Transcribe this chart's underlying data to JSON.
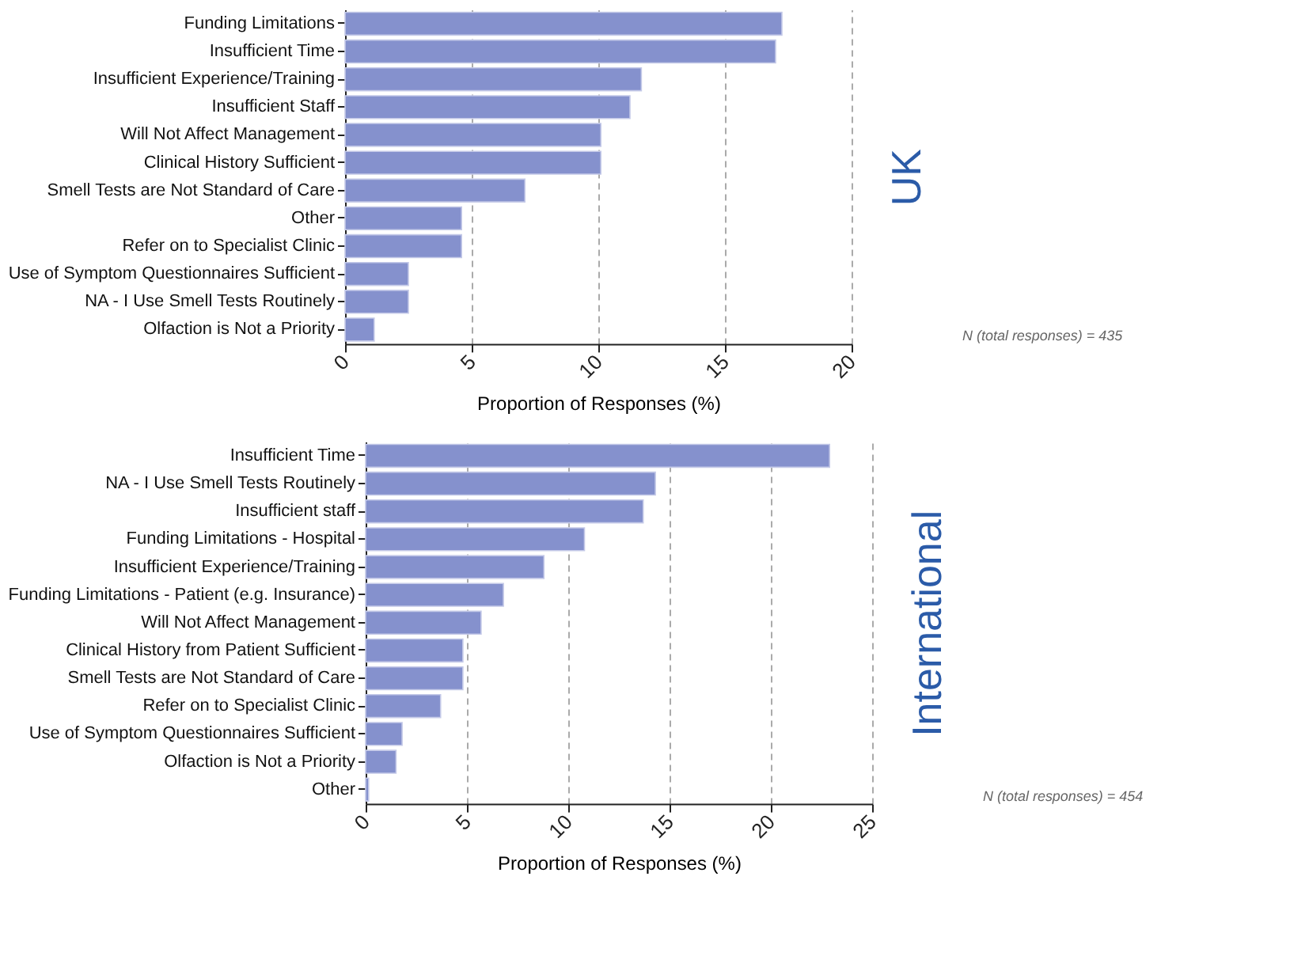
{
  "chart_data": [
    {
      "type": "bar",
      "orientation": "horizontal",
      "y2label": "UK",
      "xlabel": "Proportion of Responses (%)",
      "color": "#8591cd",
      "grid": "x",
      "categories": [
        "Funding Limitations",
        "Insufficient Time",
        "Insufficient Experience/Training",
        "Insufficient Staff",
        "Will Not Affect Management",
        "Clinical History Sufficient",
        "Smell Tests are Not Standard of Care",
        "Other",
        "Refer on to Specialist Clinic",
        "Use of Symptom Questionnaires Sufficient",
        "NA - I Use Smell Tests Routinely",
        "Olfaction is Not a Priority"
      ],
      "values": [
        17.25,
        17.0,
        11.7,
        11.25,
        10.1,
        10.1,
        7.1,
        4.6,
        4.6,
        2.5,
        2.5,
        1.15
      ],
      "xlim": [
        0,
        20
      ],
      "xticks": [
        0,
        5,
        10,
        15,
        20
      ],
      "annotations": [
        "N (total responses) = 435"
      ]
    },
    {
      "type": "bar",
      "orientation": "horizontal",
      "y2label": "International",
      "xlabel": "Proportion of Responses (%)",
      "color": "#8591cd",
      "grid": "x",
      "categories": [
        "Insufficient Time",
        "NA - I Use Smell Tests Routinely",
        "Insufficient staff",
        "Funding Limitations - Hospital",
        "Insufficient Experience/Training",
        "Funding Limitations - Patient (e.g. Insurance)",
        "Will Not Affect Management",
        "Clinical History from Patient Sufficient",
        "Smell Tests are Not Standard of Care",
        "Refer on to Specialist Clinic",
        "Use of Symptom Questionnaires Sufficient",
        "Olfaction is Not a Priority",
        "Other"
      ],
      "values": [
        22.9,
        14.3,
        13.7,
        10.8,
        8.8,
        6.8,
        5.7,
        4.8,
        4.8,
        3.7,
        1.8,
        1.5,
        0.15
      ],
      "xlim": [
        0,
        25
      ],
      "xticks": [
        0,
        5,
        10,
        15,
        20,
        25
      ],
      "annotations": [
        "N (total responses) = 454"
      ]
    }
  ]
}
